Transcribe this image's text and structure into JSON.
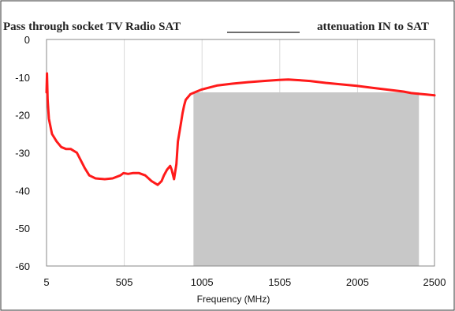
{
  "chart_data": {
    "type": "line",
    "title": "Pass through socket TV Radio SAT",
    "legend": {
      "placement": "top-right",
      "entries": [
        {
          "label": "attenuation IN to SAT",
          "color": "#6e6e6e"
        }
      ]
    },
    "xlabel": "Frequency (MHz)",
    "ylabel": "",
    "xlim": [
      5,
      2500
    ],
    "ylim": [
      -60,
      0
    ],
    "x_ticks": [
      5,
      505,
      1005,
      1505,
      2005,
      2500
    ],
    "y_ticks": [
      0,
      -10,
      -20,
      -30,
      -40,
      -50,
      -60
    ],
    "x_tick_labels": [
      "5",
      "505",
      "1005",
      "1505",
      "2005",
      "2500"
    ],
    "y_tick_labels": [
      "0",
      "-10",
      "-20",
      "-30",
      "-40",
      "-50",
      "-60"
    ],
    "grid": {
      "vertical": true,
      "horizontal": false
    },
    "series": [
      {
        "color": "#ff1a1a",
        "x": [
          5,
          8,
          12,
          20,
          40,
          70,
          100,
          130,
          160,
          200,
          250,
          280,
          320,
          380,
          430,
          480,
          500,
          530,
          560,
          600,
          640,
          680,
          720,
          745,
          760,
          780,
          800,
          810,
          825,
          840,
          850,
          870,
          880,
          890,
          900,
          930,
          970,
          1000,
          1100,
          1200,
          1300,
          1400,
          1500,
          1560,
          1600,
          1700,
          1800,
          1900,
          2000,
          2100,
          2200,
          2300,
          2350,
          2400,
          2450,
          2500
        ],
        "y": [
          -14,
          -9,
          -16,
          -21,
          -25,
          -27,
          -28.5,
          -29,
          -29,
          -30,
          -34,
          -36,
          -36.8,
          -37,
          -36.8,
          -36,
          -35.4,
          -35.6,
          -35.4,
          -35.4,
          -36,
          -37.5,
          -38.5,
          -37.5,
          -36,
          -34.5,
          -33.5,
          -34.5,
          -37,
          -33,
          -27,
          -22,
          -19.5,
          -17.5,
          -16,
          -14.5,
          -13.8,
          -13.3,
          -12.2,
          -11.7,
          -11.3,
          -11,
          -10.7,
          -10.6,
          -10.7,
          -11,
          -11.5,
          -11.9,
          -12.3,
          -12.8,
          -13.3,
          -13.8,
          -14.2,
          -14.4,
          -14.6,
          -14.8
        ]
      }
    ],
    "shaded_regions": [
      {
        "x_from": 950,
        "x_to": 2400,
        "y_from": -60,
        "y_to": -14,
        "color": "#c8c8c8"
      }
    ]
  }
}
